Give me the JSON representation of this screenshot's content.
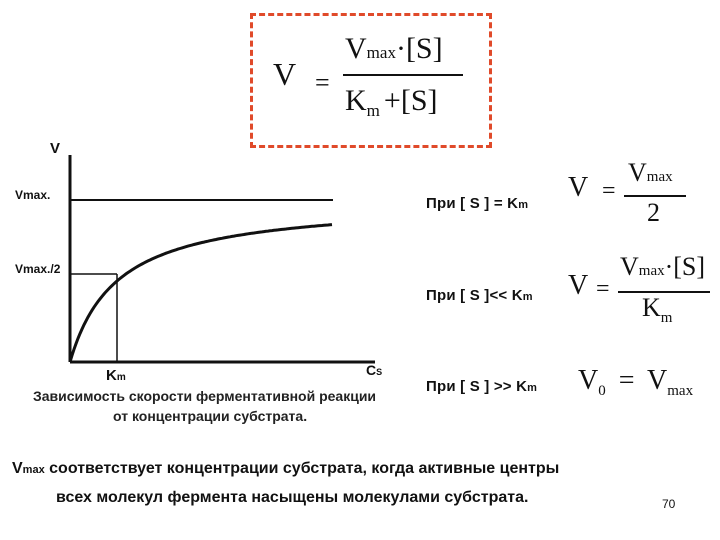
{
  "main_formula": {
    "lhs": "V",
    "equals": "=",
    "num_vmax": "V",
    "num_max": "max",
    "num_dot_s": "·[S]",
    "den_k": "K",
    "den_m": "m",
    "den_plus_s": "+[S]"
  },
  "graph": {
    "y_axis_label": "V",
    "y_tick_vmax": "Vmax.",
    "y_tick_half": "Vmax./2",
    "x_tick_km_base": "K",
    "x_tick_km_sub": "m",
    "x_axis_label_base": "C",
    "x_axis_label_sub": "S",
    "caption_line1": "Зависимость скорости ферментативной реакции",
    "caption_line2": "от концентрации субстрата."
  },
  "conditions": [
    {
      "label": "При [ S ] = K",
      "label_sub": "m",
      "formula": {
        "lhs": "V",
        "eq": "=",
        "num": "V",
        "num_sub": "max",
        "den": "2"
      }
    },
    {
      "label": "При [ S ]<< K",
      "label_sub": "m",
      "formula": {
        "lhs": "V",
        "eq": "=",
        "num": "V",
        "num_sub": "max",
        "num_tail": "·[S]",
        "den": "K",
        "den_sub": "m"
      }
    },
    {
      "label": "При [ S ] >> K",
      "label_sub": "m",
      "formula": {
        "lhs": "V",
        "lhs_sub": "0",
        "eq": "=",
        "rhs": "V",
        "rhs_sub": "max"
      }
    }
  ],
  "footnote": {
    "vmax": "V",
    "vmax_sub": "max",
    "line1": "соответствует концентрации субстрата, когда активные центры",
    "line2": "всех молекул фермента насыщены молекулами субстрата."
  },
  "page_number": "70",
  "colors": {
    "border_dashed": "#e04a2a",
    "ink": "#111111"
  }
}
